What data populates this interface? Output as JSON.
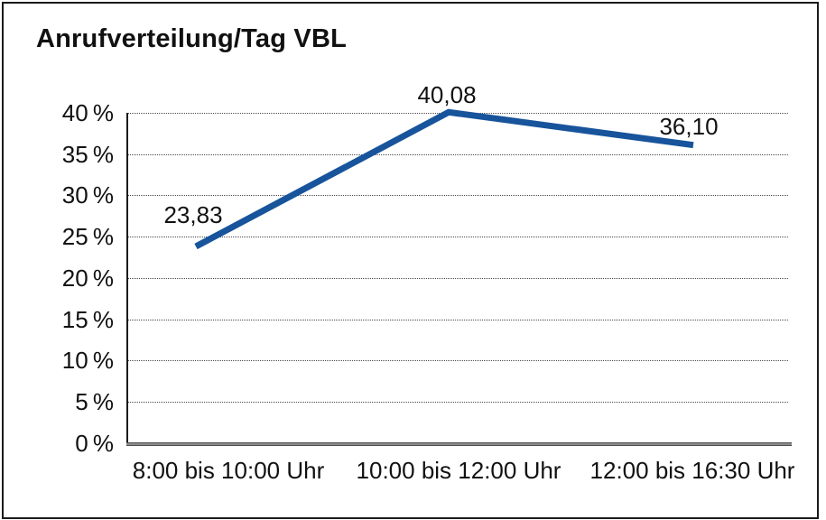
{
  "chart_data": {
    "type": "line",
    "title": "Anrufverteilung/Tag VBL",
    "categories": [
      "8:00 bis 10:00 Uhr",
      "10:00 bis 12:00 Uhr",
      "12:00 bis 16:30 Uhr"
    ],
    "values": [
      23.83,
      40.08,
      36.1
    ],
    "data_labels": [
      "23,83",
      "40,08",
      "36,10"
    ],
    "xlabel": "",
    "ylabel": "",
    "ylim": [
      0,
      40
    ],
    "ytick_step": 5,
    "ytick_labels": [
      "40 %",
      "35 %",
      "30 %",
      "25 %",
      "20 %",
      "15 %",
      "10 %",
      "5 %",
      "0 %"
    ],
    "grid": "horizontal dotted",
    "legend_position": "none",
    "line_color": "#17549B",
    "axis_color": "#1a1a1a",
    "text_color": "#111111"
  }
}
